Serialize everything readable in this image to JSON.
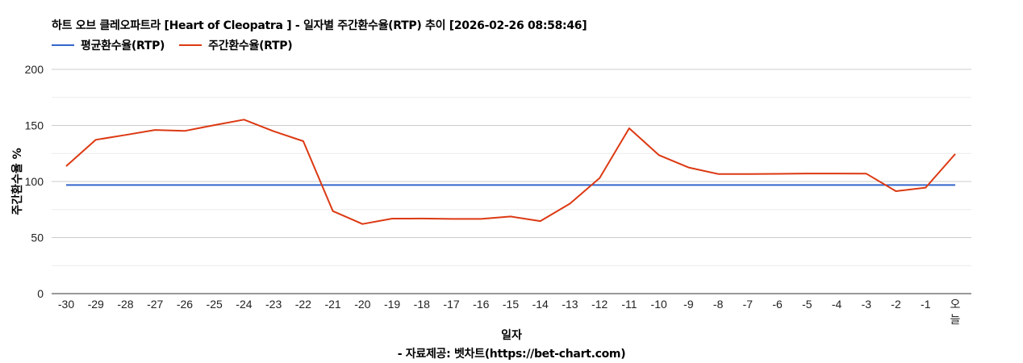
{
  "chart_data": {
    "type": "line",
    "title": "하트 오브 클레오파트라 [Heart of Cleopatra ] - 일자별 주간환수율(RTP) 추이 [2026-02-26 08:58:46]",
    "xlabel": "일자",
    "ylabel": "주간환수율 %",
    "credit": "- 자료제공: 벳차트(https://bet-chart.com)",
    "ylim": [
      0,
      200
    ],
    "yticks": [
      0,
      50,
      100,
      150,
      200
    ],
    "grid": true,
    "legend_position": "top-left",
    "categories": [
      "-30",
      "-29",
      "-28",
      "-27",
      "-26",
      "-25",
      "-24",
      "-23",
      "-22",
      "-21",
      "-20",
      "-19",
      "-18",
      "-17",
      "-16",
      "-15",
      "-14",
      "-13",
      "-12",
      "-11",
      "-10",
      "-9",
      "-8",
      "-7",
      "-6",
      "-5",
      "-4",
      "-3",
      "-2",
      "-1",
      "오늘"
    ],
    "series": [
      {
        "name": "평균환수율(RTP)",
        "color": "#3366cc",
        "values": [
          96.8,
          96.8,
          96.8,
          96.8,
          96.8,
          96.8,
          96.8,
          96.8,
          96.8,
          96.8,
          96.8,
          96.8,
          96.8,
          96.8,
          96.8,
          96.8,
          96.8,
          96.8,
          96.8,
          96.8,
          96.8,
          96.8,
          96.8,
          96.8,
          96.8,
          96.8,
          96.8,
          96.8,
          96.8,
          96.8,
          96.8
        ]
      },
      {
        "name": "주간환수율(RTP)",
        "color": "#dc3912",
        "values": [
          113.7,
          137.2,
          141.5,
          146.0,
          145.1,
          150.3,
          155.2,
          144.8,
          136.0,
          73.6,
          62.1,
          66.9,
          67.0,
          66.6,
          66.6,
          68.8,
          64.7,
          80.3,
          103.1,
          147.5,
          123.5,
          112.5,
          106.7,
          106.6,
          106.8,
          107.1,
          107.1,
          107.0,
          91.4,
          94.5,
          124.5
        ]
      }
    ]
  }
}
